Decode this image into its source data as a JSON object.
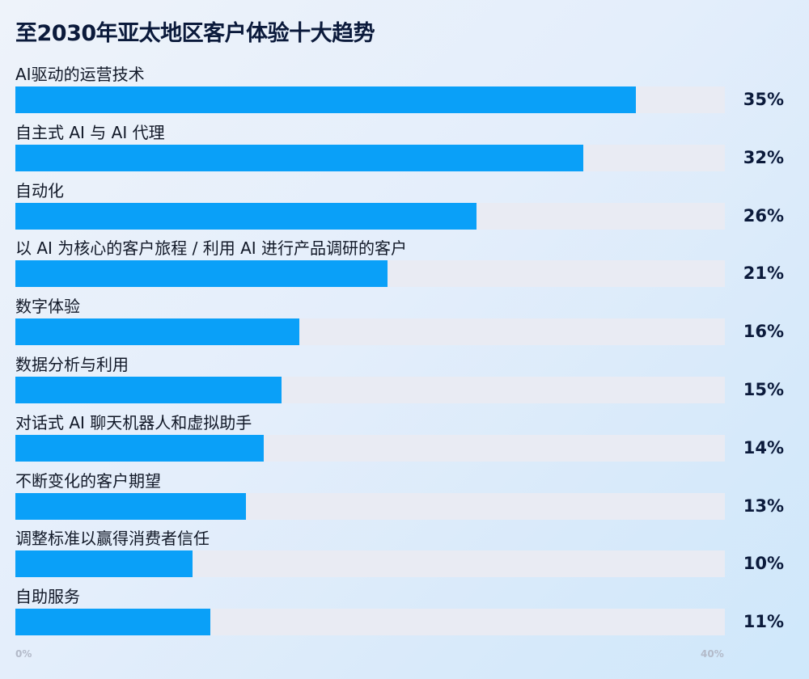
{
  "chart_data": {
    "type": "bar",
    "orientation": "horizontal",
    "title": "至2030年亚太地区客户体验十大趋势",
    "categories": [
      "AI驱动的运营技术",
      "自主式 AI 与 AI 代理",
      "自动化",
      "以 AI 为核心的客户旅程 / 利用 AI 进行产品调研的客户",
      "数字体验",
      "数据分析与利用",
      "对话式 AI 聊天机器人和虚拟助手",
      "不断变化的客户期望",
      "调整标准以赢得消费者信任",
      "自助服务"
    ],
    "values": [
      35,
      32,
      26,
      21,
      16,
      15,
      14,
      13,
      10,
      11
    ],
    "value_labels": [
      "35%",
      "32%",
      "26%",
      "21%",
      "16%",
      "15%",
      "14%",
      "13%",
      "10%",
      "11%"
    ],
    "xlim": [
      0,
      40
    ],
    "x_tick_labels": [
      "0%",
      "40%"
    ],
    "grid": false,
    "legend": "none",
    "colors": {
      "bar": "#0aa0f8",
      "track": "#e9ebf3"
    }
  }
}
